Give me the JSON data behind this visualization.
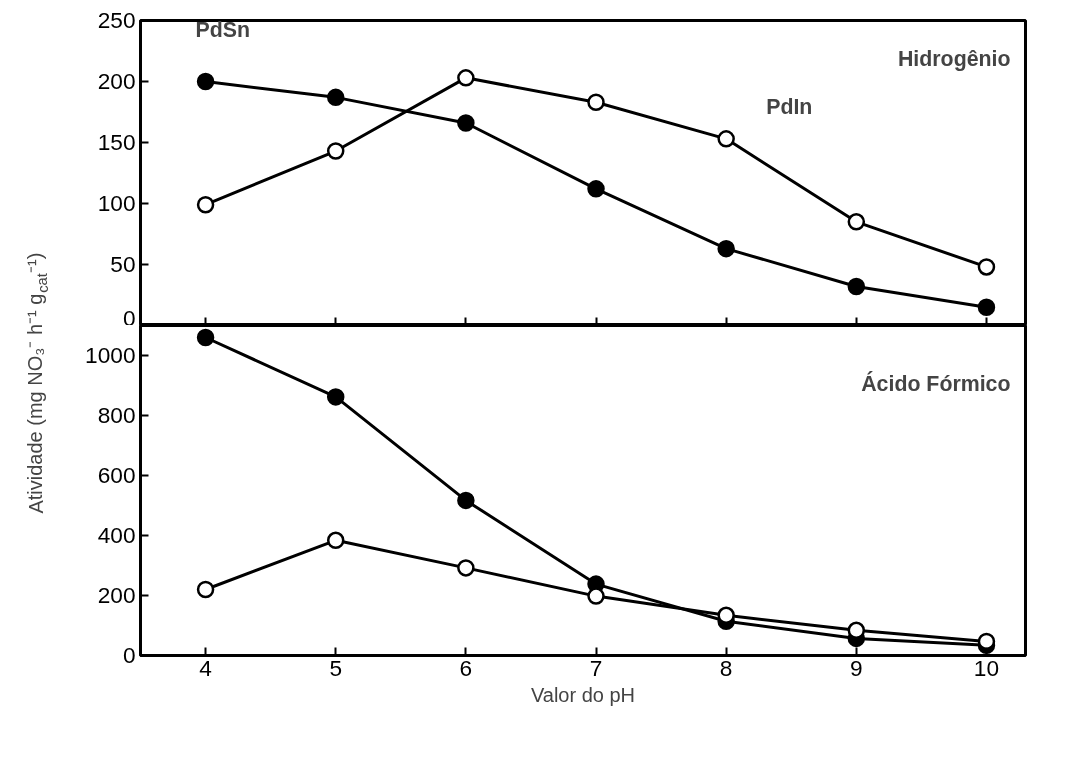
{
  "chart_data": [
    {
      "type": "line",
      "ylabel": "Atividade (mg NO₃⁻ h⁻¹ g$_{cat}$⁻¹)",
      "annotations": [
        "Hidrogênio"
      ],
      "x": [
        4,
        5,
        6,
        7,
        8,
        9,
        10
      ],
      "xlim": [
        3.5,
        10.3
      ],
      "xticks": [
        4,
        5,
        6,
        7,
        8,
        9,
        10
      ],
      "ylim": [
        0,
        250
      ],
      "yticks": [
        0,
        50,
        100,
        150,
        200,
        250
      ],
      "tick_labels": "y",
      "marker": "circle",
      "line_style": "solid",
      "grid": false,
      "series": [
        {
          "name": "PdSn",
          "color": "#000000",
          "values": [
            200,
            187,
            166,
            112,
            63,
            32,
            15
          ]
        },
        {
          "name": "PdIn",
          "color": "#000000",
          "values": [
            99,
            143,
            203,
            183,
            153,
            85,
            48
          ]
        }
      ]
    },
    {
      "type": "line",
      "xlabel": "Valor do pH",
      "annotations": [
        "Ácido Fórmico"
      ],
      "x": [
        4,
        5,
        6,
        7,
        8,
        9,
        10
      ],
      "xlim": [
        3.5,
        10.3
      ],
      "xticks": [
        4,
        5,
        6,
        7,
        8,
        9,
        10
      ],
      "ylim": [
        0,
        1100
      ],
      "yticks": [
        0,
        200,
        400,
        600,
        800,
        1000
      ],
      "marker": "circle",
      "line_style": "solid",
      "grid": false,
      "series": [
        {
          "color": "#000000",
          "values": [
            1060,
            862,
            517,
            238,
            114,
            57,
            34
          ]
        },
        {
          "color": "#000000",
          "values": [
            220,
            384,
            292,
            198,
            134,
            84,
            47
          ]
        }
      ]
    }
  ]
}
